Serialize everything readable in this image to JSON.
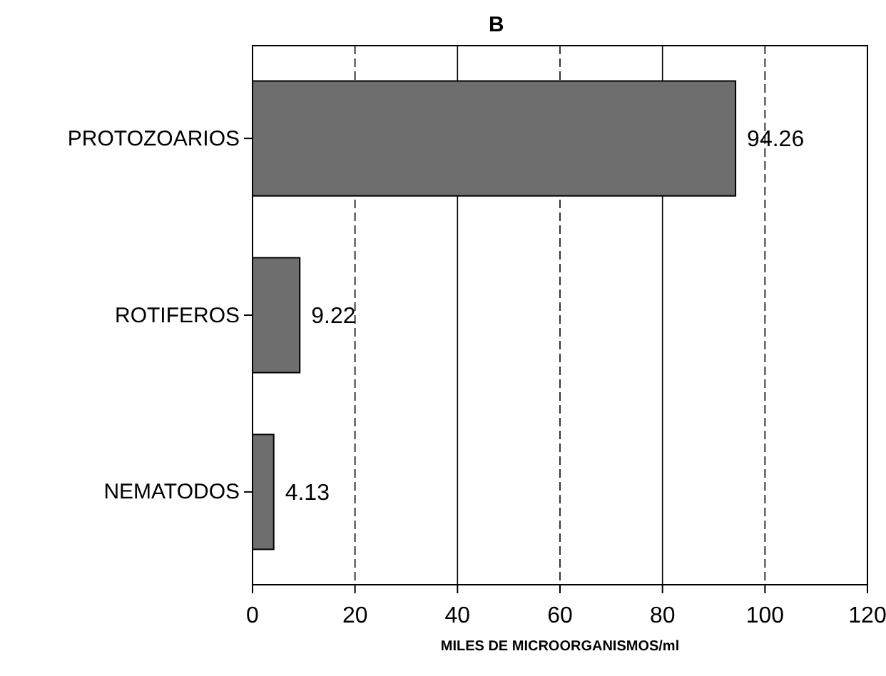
{
  "chart_data": {
    "type": "bar",
    "orientation": "horizontal",
    "title": "B",
    "xlabel": "MILES DE MICROORGANISMOS/ml",
    "categories": [
      "PROTOZOARIOS",
      "ROTIFEROS",
      "NEMATODOS"
    ],
    "values": [
      94.26,
      9.22,
      4.13
    ],
    "color": "#6e6e6e",
    "data_labels": true,
    "xlim": [
      0,
      120
    ],
    "xticks": [
      0,
      20,
      40,
      60,
      80,
      100,
      120
    ],
    "grid": "x"
  }
}
